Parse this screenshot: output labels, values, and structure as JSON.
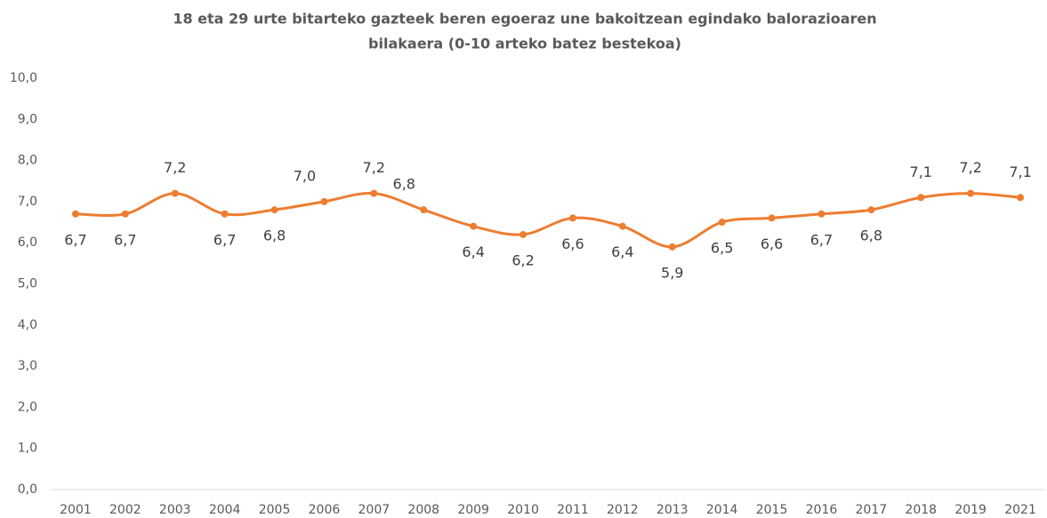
{
  "chart_data": {
    "type": "line",
    "title": [
      "18 eta 29 urte bitarteko gazteek beren egoeraz une bakoitzean egindako balorazioaren",
      "bilakaera (0-10 arteko batez bestekoa)"
    ],
    "categories": [
      "2001",
      "2002",
      "2003",
      "2004",
      "2005",
      "2006",
      "2007",
      "2008",
      "2009",
      "2010",
      "2011",
      "2012",
      "2013",
      "2014",
      "2015",
      "2016",
      "2017",
      "2018",
      "2019",
      "2021"
    ],
    "values": [
      6.7,
      6.7,
      7.2,
      6.7,
      6.8,
      7.0,
      7.2,
      6.8,
      6.4,
      6.2,
      6.6,
      6.4,
      5.9,
      6.5,
      6.6,
      6.7,
      6.8,
      7.1,
      7.2,
      7.1
    ],
    "value_labels": [
      "6,7",
      "6,7",
      "7,2",
      "6,7",
      "6,8",
      "7,0",
      "7,2",
      "6,8",
      "6,4",
      "6,2",
      "6,6",
      "6,4",
      "5,9",
      "6,5",
      "6,6",
      "6,7",
      "6,8",
      "7,1",
      "7,2",
      "7,1"
    ],
    "color": "#ed7d31",
    "ylim": [
      0,
      10
    ],
    "yticks": [
      {
        "value": 0,
        "label": "0,0"
      },
      {
        "value": 1,
        "label": "1,0"
      },
      {
        "value": 2,
        "label": "2,0"
      },
      {
        "value": 3,
        "label": "3,0"
      },
      {
        "value": 4,
        "label": "4,0"
      },
      {
        "value": 5,
        "label": "5,0"
      },
      {
        "value": 6,
        "label": "6,0"
      },
      {
        "value": 7,
        "label": "7,0"
      },
      {
        "value": 8,
        "label": "8,0"
      },
      {
        "value": 9,
        "label": "9,0"
      },
      {
        "value": 10,
        "label": "10,0"
      }
    ],
    "grid": false
  }
}
